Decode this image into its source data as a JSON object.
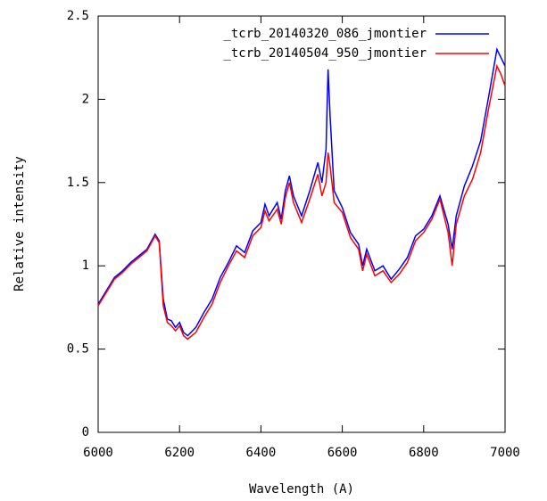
{
  "chart_data": {
    "type": "line",
    "xlabel": "Wavelength (A)",
    "ylabel": "Relative intensity",
    "x": [
      6000,
      6020,
      6040,
      6060,
      6080,
      6100,
      6120,
      6140,
      6150,
      6160,
      6170,
      6180,
      6190,
      6200,
      6210,
      6220,
      6240,
      6260,
      6280,
      6300,
      6320,
      6340,
      6360,
      6380,
      6400,
      6410,
      6420,
      6440,
      6450,
      6460,
      6470,
      6480,
      6500,
      6520,
      6540,
      6550,
      6560,
      6565,
      6570,
      6580,
      6600,
      6620,
      6640,
      6650,
      6660,
      6680,
      6700,
      6720,
      6740,
      6760,
      6780,
      6800,
      6820,
      6840,
      6860,
      6870,
      6880,
      6900,
      6920,
      6940,
      6960,
      6980,
      6990,
      7000
    ],
    "series": [
      {
        "name": "_tcrb_20140320_086_jmontier",
        "color": "#0000ff",
        "values": [
          0.77,
          0.85,
          0.93,
          0.97,
          1.02,
          1.06,
          1.1,
          1.19,
          1.15,
          0.8,
          0.68,
          0.67,
          0.63,
          0.66,
          0.6,
          0.58,
          0.63,
          0.72,
          0.8,
          0.93,
          1.02,
          1.12,
          1.08,
          1.21,
          1.26,
          1.37,
          1.3,
          1.38,
          1.28,
          1.45,
          1.54,
          1.42,
          1.3,
          1.45,
          1.62,
          1.5,
          1.7,
          2.18,
          1.9,
          1.45,
          1.35,
          1.2,
          1.13,
          1.0,
          1.1,
          0.97,
          1.0,
          0.92,
          0.98,
          1.05,
          1.18,
          1.22,
          1.3,
          1.42,
          1.25,
          1.1,
          1.3,
          1.48,
          1.6,
          1.75,
          2.02,
          2.3,
          2.25,
          2.2
        ]
      },
      {
        "name": "_tcrb_20140504_950_jmontier",
        "color": "#ff0000",
        "values": [
          0.76,
          0.84,
          0.92,
          0.96,
          1.01,
          1.05,
          1.09,
          1.18,
          1.14,
          0.76,
          0.66,
          0.64,
          0.61,
          0.64,
          0.58,
          0.56,
          0.6,
          0.69,
          0.77,
          0.9,
          1.0,
          1.09,
          1.05,
          1.18,
          1.23,
          1.33,
          1.27,
          1.34,
          1.25,
          1.41,
          1.5,
          1.38,
          1.26,
          1.4,
          1.55,
          1.42,
          1.5,
          1.68,
          1.6,
          1.38,
          1.32,
          1.17,
          1.1,
          0.97,
          1.07,
          0.94,
          0.97,
          0.9,
          0.95,
          1.02,
          1.15,
          1.2,
          1.28,
          1.4,
          1.2,
          1.0,
          1.25,
          1.42,
          1.52,
          1.68,
          1.95,
          2.2,
          2.15,
          2.08
        ]
      }
    ],
    "xlim": [
      6000,
      7000
    ],
    "xticks": [
      6000,
      6200,
      6400,
      6600,
      6800,
      7000
    ],
    "ylim": [
      0,
      2.5
    ],
    "yticks": [
      0,
      0.5,
      1,
      1.5,
      2,
      2.5
    ],
    "legend": "upper right"
  }
}
